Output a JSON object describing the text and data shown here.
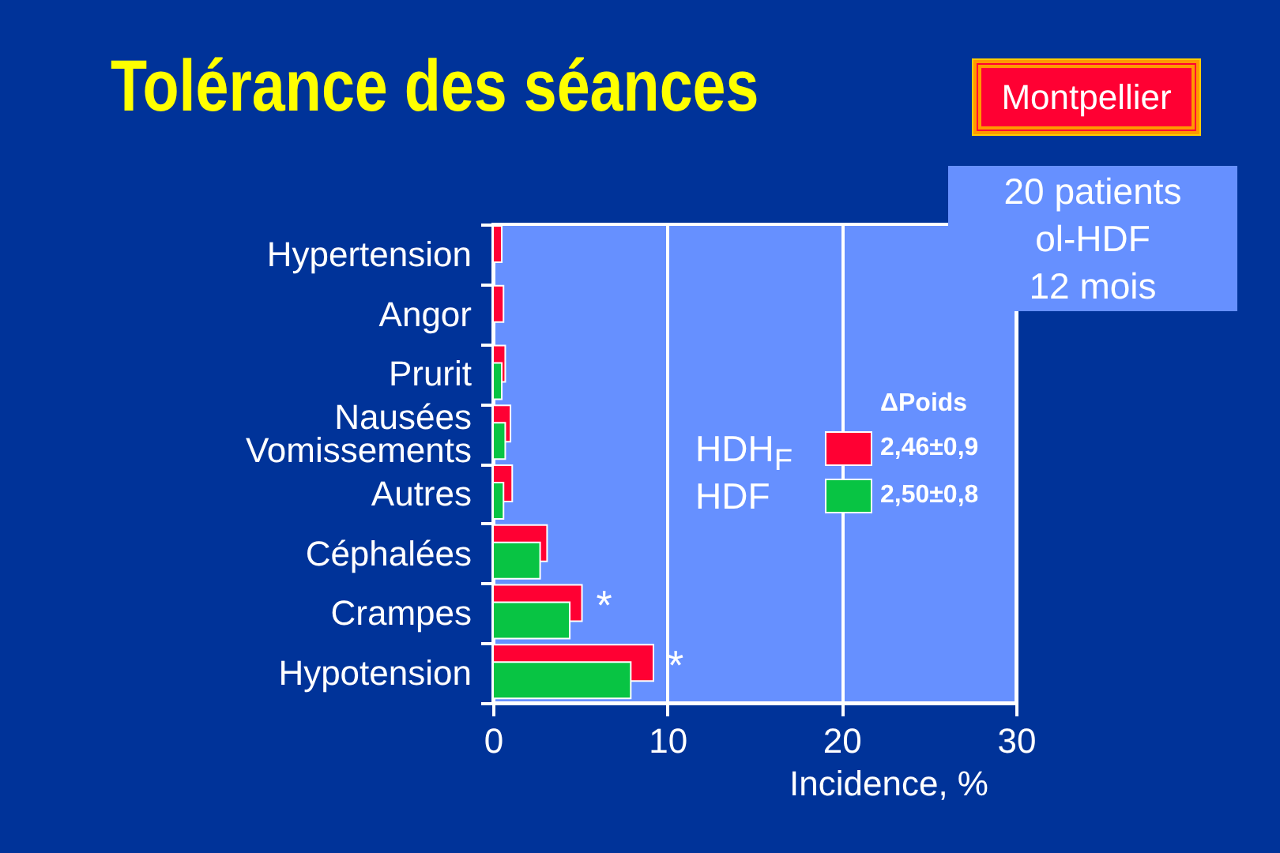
{
  "chart_data": {
    "type": "bar",
    "orientation": "horizontal",
    "title": "Tolérance des séances",
    "xlabel": "Incidence, %",
    "categories": [
      "Hypertension",
      "Angor",
      "Prurit",
      "Nausées\nVomissements",
      "Autres",
      "Céphalées",
      "Crampes",
      "Hypotension"
    ],
    "series": [
      {
        "name": "HDH$_{F}$",
        "color": "#ff0033",
        "values": [
          0.5,
          0.6,
          0.7,
          1.0,
          1.1,
          3.1,
          5.1,
          9.2
        ]
      },
      {
        "name": "HDF",
        "color": "#08c443",
        "values": [
          null,
          null,
          0.5,
          0.7,
          0.6,
          2.7,
          4.4,
          7.9
        ]
      }
    ],
    "xlim": [
      0,
      30
    ],
    "xticks": [
      0,
      10,
      20,
      30
    ],
    "grid": "x",
    "legend": "right",
    "legend_title": "ΔPoids",
    "annotations": [
      "Montpellier",
      "20 patients\nol-HDF\n12 mois",
      "2,46±0,9",
      "2,50±0,8",
      {
        "text": "*",
        "x": 5.1,
        "y": "Crampes"
      },
      {
        "text": "*",
        "x": 9.2,
        "y": "Hypotension"
      }
    ]
  }
}
